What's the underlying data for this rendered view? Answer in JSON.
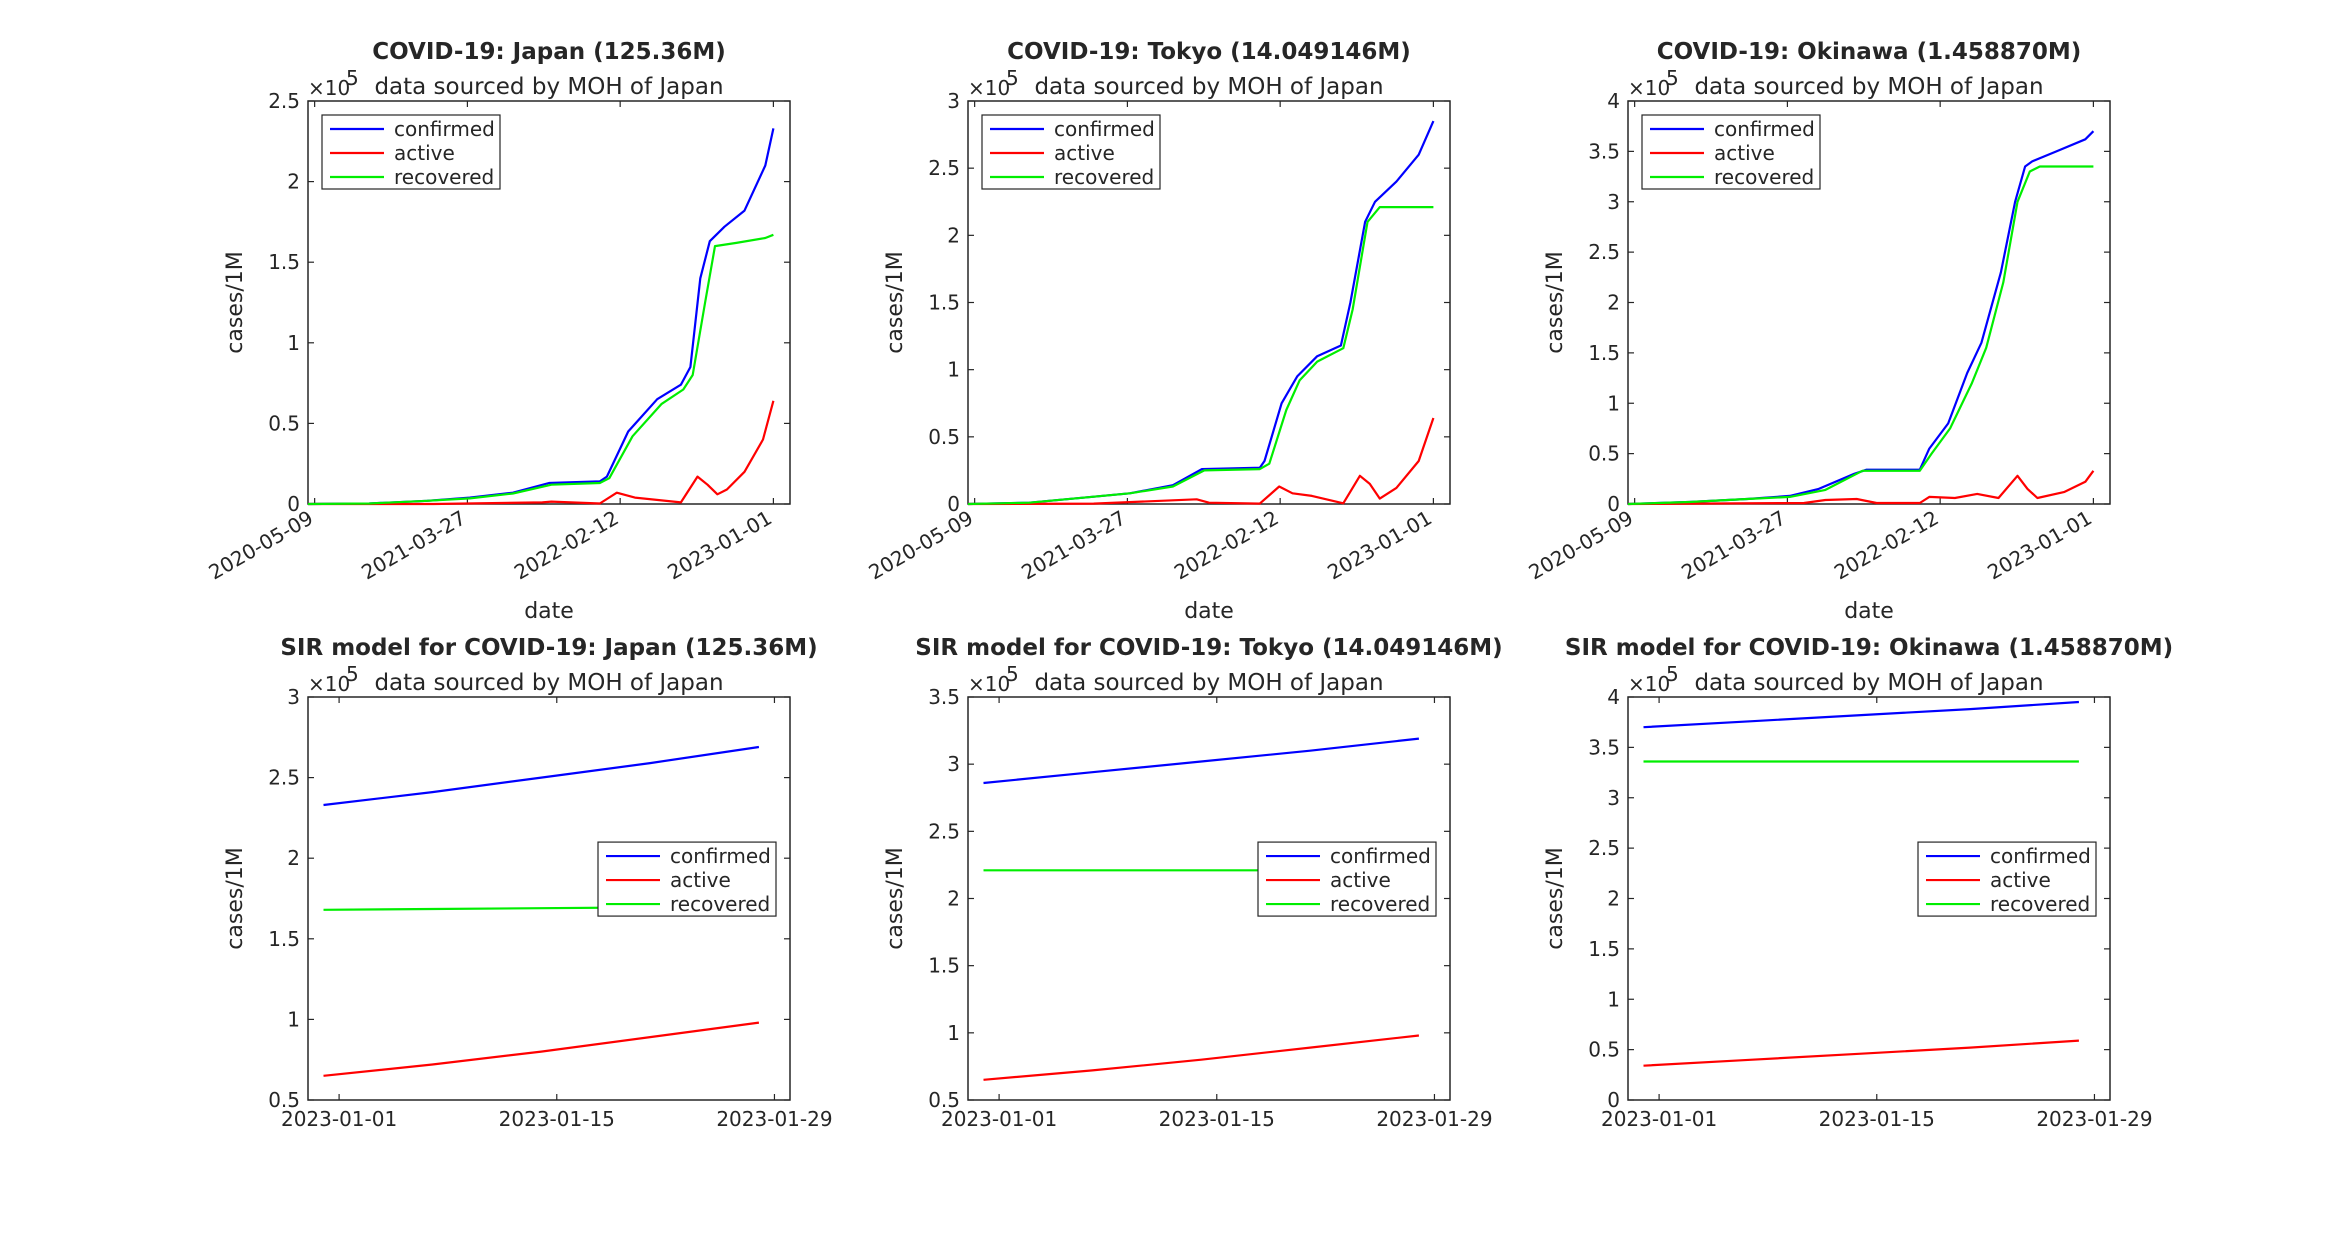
{
  "chart_data": [
    {
      "type": "line",
      "title": "COVID-19: Japan (125.36M)",
      "subtitle": "data sourced by MOH of Japan",
      "xlabel": "date",
      "ylabel": "cases/1M",
      "exponent": "×10",
      "exponent_power": "5",
      "xlim": [
        "2020-04-25",
        "2023-02-05"
      ],
      "ylim": [
        0,
        2.5
      ],
      "yticks": [
        0,
        0.5,
        1,
        1.5,
        2,
        2.5
      ],
      "ytick_labels": [
        "0",
        "0.5",
        "1",
        "1.5",
        "2",
        "2.5"
      ],
      "xticks": [
        "2020-05-09",
        "2021-03-27",
        "2022-02-12",
        "2023-01-01"
      ],
      "xtick_rotation": -30,
      "legend_position": "top-left",
      "series": [
        {
          "name": "confirmed",
          "color": "#0000ff",
          "x": [
            "2020-04-25",
            "2020-09-01",
            "2021-01-01",
            "2021-04-01",
            "2021-07-01",
            "2021-09-15",
            "2021-12-31",
            "2022-01-15",
            "2022-03-01",
            "2022-05-01",
            "2022-06-20",
            "2022-07-10",
            "2022-07-31",
            "2022-08-20",
            "2022-09-20",
            "2022-11-01",
            "2022-12-15",
            "2023-01-01"
          ],
          "values": [
            0.0,
            0.003,
            0.02,
            0.04,
            0.07,
            0.13,
            0.14,
            0.17,
            0.45,
            0.65,
            0.74,
            0.85,
            1.4,
            1.63,
            1.72,
            1.82,
            2.1,
            2.33
          ]
        },
        {
          "name": "active",
          "color": "#ff0000",
          "x": [
            "2020-04-25",
            "2021-01-15",
            "2021-09-01",
            "2021-09-20",
            "2021-12-31",
            "2022-02-05",
            "2022-03-15",
            "2022-06-20",
            "2022-07-25",
            "2022-08-15",
            "2022-09-05",
            "2022-09-25",
            "2022-11-01",
            "2022-12-10",
            "2023-01-01"
          ],
          "values": [
            0.0,
            0.0,
            0.01,
            0.015,
            0.003,
            0.07,
            0.04,
            0.01,
            0.17,
            0.12,
            0.06,
            0.09,
            0.2,
            0.4,
            0.64
          ]
        },
        {
          "name": "recovered",
          "color": "#00ee00",
          "x": [
            "2020-04-25",
            "2020-09-01",
            "2021-01-01",
            "2021-04-01",
            "2021-07-01",
            "2021-09-20",
            "2021-12-31",
            "2022-01-20",
            "2022-03-10",
            "2022-05-10",
            "2022-06-25",
            "2022-07-15",
            "2022-08-10",
            "2022-08-31",
            "2022-10-15",
            "2022-12-15",
            "2023-01-01"
          ],
          "values": [
            0.0,
            0.003,
            0.02,
            0.035,
            0.065,
            0.12,
            0.13,
            0.16,
            0.42,
            0.62,
            0.71,
            0.8,
            1.25,
            1.6,
            1.62,
            1.65,
            1.67
          ]
        }
      ]
    },
    {
      "type": "line",
      "title": "COVID-19: Tokyo (14.049146M)",
      "subtitle": "data sourced by MOH of Japan",
      "xlabel": "date",
      "ylabel": "cases/1M",
      "exponent": "×10",
      "exponent_power": "5",
      "xlim": [
        "2020-04-25",
        "2023-02-05"
      ],
      "ylim": [
        0,
        3
      ],
      "yticks": [
        0,
        0.5,
        1,
        1.5,
        2,
        2.5,
        3
      ],
      "ytick_labels": [
        "0",
        "0.5",
        "1",
        "1.5",
        "2",
        "2.5",
        "3"
      ],
      "xticks": [
        "2020-05-09",
        "2021-03-27",
        "2022-02-12",
        "2023-01-01"
      ],
      "xtick_rotation": -30,
      "legend_position": "top-left",
      "series": [
        {
          "name": "confirmed",
          "color": "#0000ff",
          "x": [
            "2020-04-25",
            "2020-09-01",
            "2021-01-01",
            "2021-04-01",
            "2021-07-01",
            "2021-08-31",
            "2021-12-31",
            "2022-01-10",
            "2022-02-15",
            "2022-03-20",
            "2022-05-01",
            "2022-06-20",
            "2022-07-10",
            "2022-08-10",
            "2022-08-31",
            "2022-10-15",
            "2022-12-01",
            "2023-01-01"
          ],
          "values": [
            0.0,
            0.01,
            0.05,
            0.08,
            0.14,
            0.26,
            0.27,
            0.32,
            0.75,
            0.95,
            1.1,
            1.18,
            1.5,
            2.1,
            2.25,
            2.4,
            2.6,
            2.85
          ]
        },
        {
          "name": "active",
          "color": "#ff0000",
          "x": [
            "2020-04-25",
            "2021-01-15",
            "2021-08-20",
            "2021-09-15",
            "2021-12-31",
            "2022-02-10",
            "2022-03-10",
            "2022-04-20",
            "2022-06-25",
            "2022-07-30",
            "2022-08-20",
            "2022-09-10",
            "2022-10-15",
            "2022-12-01",
            "2023-01-01"
          ],
          "values": [
            0.0,
            0.003,
            0.035,
            0.01,
            0.003,
            0.13,
            0.08,
            0.06,
            0.005,
            0.21,
            0.15,
            0.04,
            0.12,
            0.32,
            0.64
          ]
        },
        {
          "name": "recovered",
          "color": "#00ee00",
          "x": [
            "2020-04-25",
            "2020-09-01",
            "2021-01-01",
            "2021-04-01",
            "2021-07-01",
            "2021-09-05",
            "2021-12-31",
            "2022-01-20",
            "2022-02-25",
            "2022-03-25",
            "2022-05-01",
            "2022-06-25",
            "2022-07-15",
            "2022-08-15",
            "2022-09-10",
            "2023-01-01"
          ],
          "values": [
            0.0,
            0.01,
            0.05,
            0.08,
            0.13,
            0.25,
            0.26,
            0.3,
            0.7,
            0.92,
            1.06,
            1.16,
            1.45,
            2.1,
            2.21,
            2.21
          ]
        }
      ]
    },
    {
      "type": "line",
      "title": "COVID-19: Okinawa (1.458870M)",
      "subtitle": "data sourced by MOH of Japan",
      "xlabel": "date",
      "ylabel": "cases/1M",
      "exponent": "×10",
      "exponent_power": "5",
      "xlim": [
        "2020-04-25",
        "2023-02-05"
      ],
      "ylim": [
        0,
        4
      ],
      "yticks": [
        0,
        0.5,
        1,
        1.5,
        2,
        2.5,
        3,
        3.5,
        4
      ],
      "ytick_labels": [
        "0",
        "0.5",
        "1",
        "1.5",
        "2",
        "2.5",
        "3",
        "3.5",
        "4"
      ],
      "xticks": [
        "2020-05-09",
        "2021-03-27",
        "2022-02-12",
        "2023-01-01"
      ],
      "xtick_rotation": -30,
      "legend_position": "top-left",
      "series": [
        {
          "name": "confirmed",
          "color": "#0000ff",
          "x": [
            "2020-04-25",
            "2020-09-01",
            "2021-01-01",
            "2021-04-01",
            "2021-06-01",
            "2021-08-15",
            "2021-09-10",
            "2021-12-31",
            "2022-01-20",
            "2022-03-01",
            "2022-04-10",
            "2022-05-10",
            "2022-06-20",
            "2022-07-20",
            "2022-08-10",
            "2022-08-25",
            "2022-10-15",
            "2022-12-15",
            "2023-01-01"
          ],
          "values": [
            0.0,
            0.02,
            0.05,
            0.08,
            0.15,
            0.3,
            0.34,
            0.34,
            0.55,
            0.8,
            1.3,
            1.6,
            2.3,
            3.0,
            3.35,
            3.4,
            3.5,
            3.62,
            3.7
          ]
        },
        {
          "name": "active",
          "color": "#ff0000",
          "x": [
            "2020-04-25",
            "2021-05-01",
            "2021-06-15",
            "2021-08-20",
            "2021-10-01",
            "2021-12-31",
            "2022-01-20",
            "2022-03-15",
            "2022-05-01",
            "2022-06-15",
            "2022-07-25",
            "2022-08-15",
            "2022-09-05",
            "2022-11-01",
            "2022-12-15",
            "2023-01-01"
          ],
          "values": [
            0.0,
            0.01,
            0.04,
            0.05,
            0.01,
            0.01,
            0.07,
            0.06,
            0.1,
            0.06,
            0.28,
            0.15,
            0.06,
            0.12,
            0.22,
            0.33
          ]
        },
        {
          "name": "recovered",
          "color": "#00ee00",
          "x": [
            "2020-04-25",
            "2020-09-01",
            "2021-01-01",
            "2021-04-01",
            "2021-06-15",
            "2021-09-01",
            "2021-12-31",
            "2022-01-25",
            "2022-03-05",
            "2022-04-20",
            "2022-05-20",
            "2022-06-25",
            "2022-07-25",
            "2022-08-20",
            "2022-09-10",
            "2023-01-01"
          ],
          "values": [
            0.0,
            0.02,
            0.05,
            0.07,
            0.14,
            0.33,
            0.33,
            0.5,
            0.75,
            1.2,
            1.55,
            2.2,
            3.0,
            3.3,
            3.35,
            3.35
          ]
        }
      ]
    },
    {
      "type": "line",
      "title": "SIR model for COVID-19: Japan (125.36M)",
      "subtitle": "data sourced by MOH of Japan",
      "xlabel": "",
      "ylabel": "cases/1M",
      "exponent": "×10",
      "exponent_power": "5",
      "xlim": [
        "2022-12-30",
        "2023-01-30"
      ],
      "ylim": [
        0.5,
        3
      ],
      "yticks": [
        0.5,
        1,
        1.5,
        2,
        2.5,
        3
      ],
      "ytick_labels": [
        "0.5",
        "1",
        "1.5",
        "2",
        "2.5",
        "3"
      ],
      "xticks": [
        "2023-01-01",
        "2023-01-15",
        "2023-01-29"
      ],
      "xtick_rotation": 0,
      "legend_position": "right",
      "series": [
        {
          "name": "confirmed",
          "color": "#0000ff",
          "x": [
            "2022-12-31",
            "2023-01-07",
            "2023-01-14",
            "2023-01-21",
            "2023-01-28"
          ],
          "values": [
            2.33,
            2.41,
            2.5,
            2.59,
            2.69
          ]
        },
        {
          "name": "active",
          "color": "#ff0000",
          "x": [
            "2022-12-31",
            "2023-01-07",
            "2023-01-14",
            "2023-01-21",
            "2023-01-28"
          ],
          "values": [
            0.65,
            0.72,
            0.8,
            0.89,
            0.98
          ]
        },
        {
          "name": "recovered",
          "color": "#00ee00",
          "x": [
            "2022-12-31",
            "2023-01-07",
            "2023-01-14",
            "2023-01-21",
            "2023-01-28"
          ],
          "values": [
            1.68,
            1.685,
            1.69,
            1.695,
            1.7
          ]
        }
      ]
    },
    {
      "type": "line",
      "title": "SIR model for COVID-19: Tokyo (14.049146M)",
      "subtitle": "data sourced by MOH of Japan",
      "xlabel": "",
      "ylabel": "cases/1M",
      "exponent": "×10",
      "exponent_power": "5",
      "xlim": [
        "2022-12-30",
        "2023-01-30"
      ],
      "ylim": [
        0.5,
        3.5
      ],
      "yticks": [
        0.5,
        1,
        1.5,
        2,
        2.5,
        3,
        3.5
      ],
      "ytick_labels": [
        "0.5",
        "1",
        "1.5",
        "2",
        "2.5",
        "3",
        "3.5"
      ],
      "xticks": [
        "2023-01-01",
        "2023-01-15",
        "2023-01-29"
      ],
      "xtick_rotation": 0,
      "legend_position": "right",
      "series": [
        {
          "name": "confirmed",
          "color": "#0000ff",
          "x": [
            "2022-12-31",
            "2023-01-07",
            "2023-01-14",
            "2023-01-21",
            "2023-01-28"
          ],
          "values": [
            2.86,
            2.94,
            3.02,
            3.1,
            3.19
          ]
        },
        {
          "name": "active",
          "color": "#ff0000",
          "x": [
            "2022-12-31",
            "2023-01-07",
            "2023-01-14",
            "2023-01-21",
            "2023-01-28"
          ],
          "values": [
            0.65,
            0.72,
            0.8,
            0.89,
            0.98
          ]
        },
        {
          "name": "recovered",
          "color": "#00ee00",
          "x": [
            "2022-12-31",
            "2023-01-28"
          ],
          "values": [
            2.21,
            2.21
          ]
        }
      ]
    },
    {
      "type": "line",
      "title": "SIR model for COVID-19: Okinawa (1.458870M)",
      "subtitle": "data sourced by MOH of Japan",
      "xlabel": "",
      "ylabel": "cases/1M",
      "exponent": "×10",
      "exponent_power": "5",
      "xlim": [
        "2022-12-30",
        "2023-01-30"
      ],
      "ylim": [
        0,
        4
      ],
      "yticks": [
        0,
        0.5,
        1,
        1.5,
        2,
        2.5,
        3,
        3.5,
        4
      ],
      "ytick_labels": [
        "0",
        "0.5",
        "1",
        "1.5",
        "2",
        "2.5",
        "3",
        "3.5",
        "4"
      ],
      "xticks": [
        "2023-01-01",
        "2023-01-15",
        "2023-01-29"
      ],
      "xtick_rotation": 0,
      "legend_position": "right",
      "series": [
        {
          "name": "confirmed",
          "color": "#0000ff",
          "x": [
            "2022-12-31",
            "2023-01-07",
            "2023-01-14",
            "2023-01-21",
            "2023-01-28"
          ],
          "values": [
            3.7,
            3.76,
            3.82,
            3.88,
            3.95
          ]
        },
        {
          "name": "active",
          "color": "#ff0000",
          "x": [
            "2022-12-31",
            "2023-01-07",
            "2023-01-14",
            "2023-01-21",
            "2023-01-28"
          ],
          "values": [
            0.34,
            0.4,
            0.46,
            0.52,
            0.59
          ]
        },
        {
          "name": "recovered",
          "color": "#00ee00",
          "x": [
            "2022-12-31",
            "2023-01-28"
          ],
          "values": [
            3.36,
            3.36
          ]
        }
      ]
    }
  ]
}
